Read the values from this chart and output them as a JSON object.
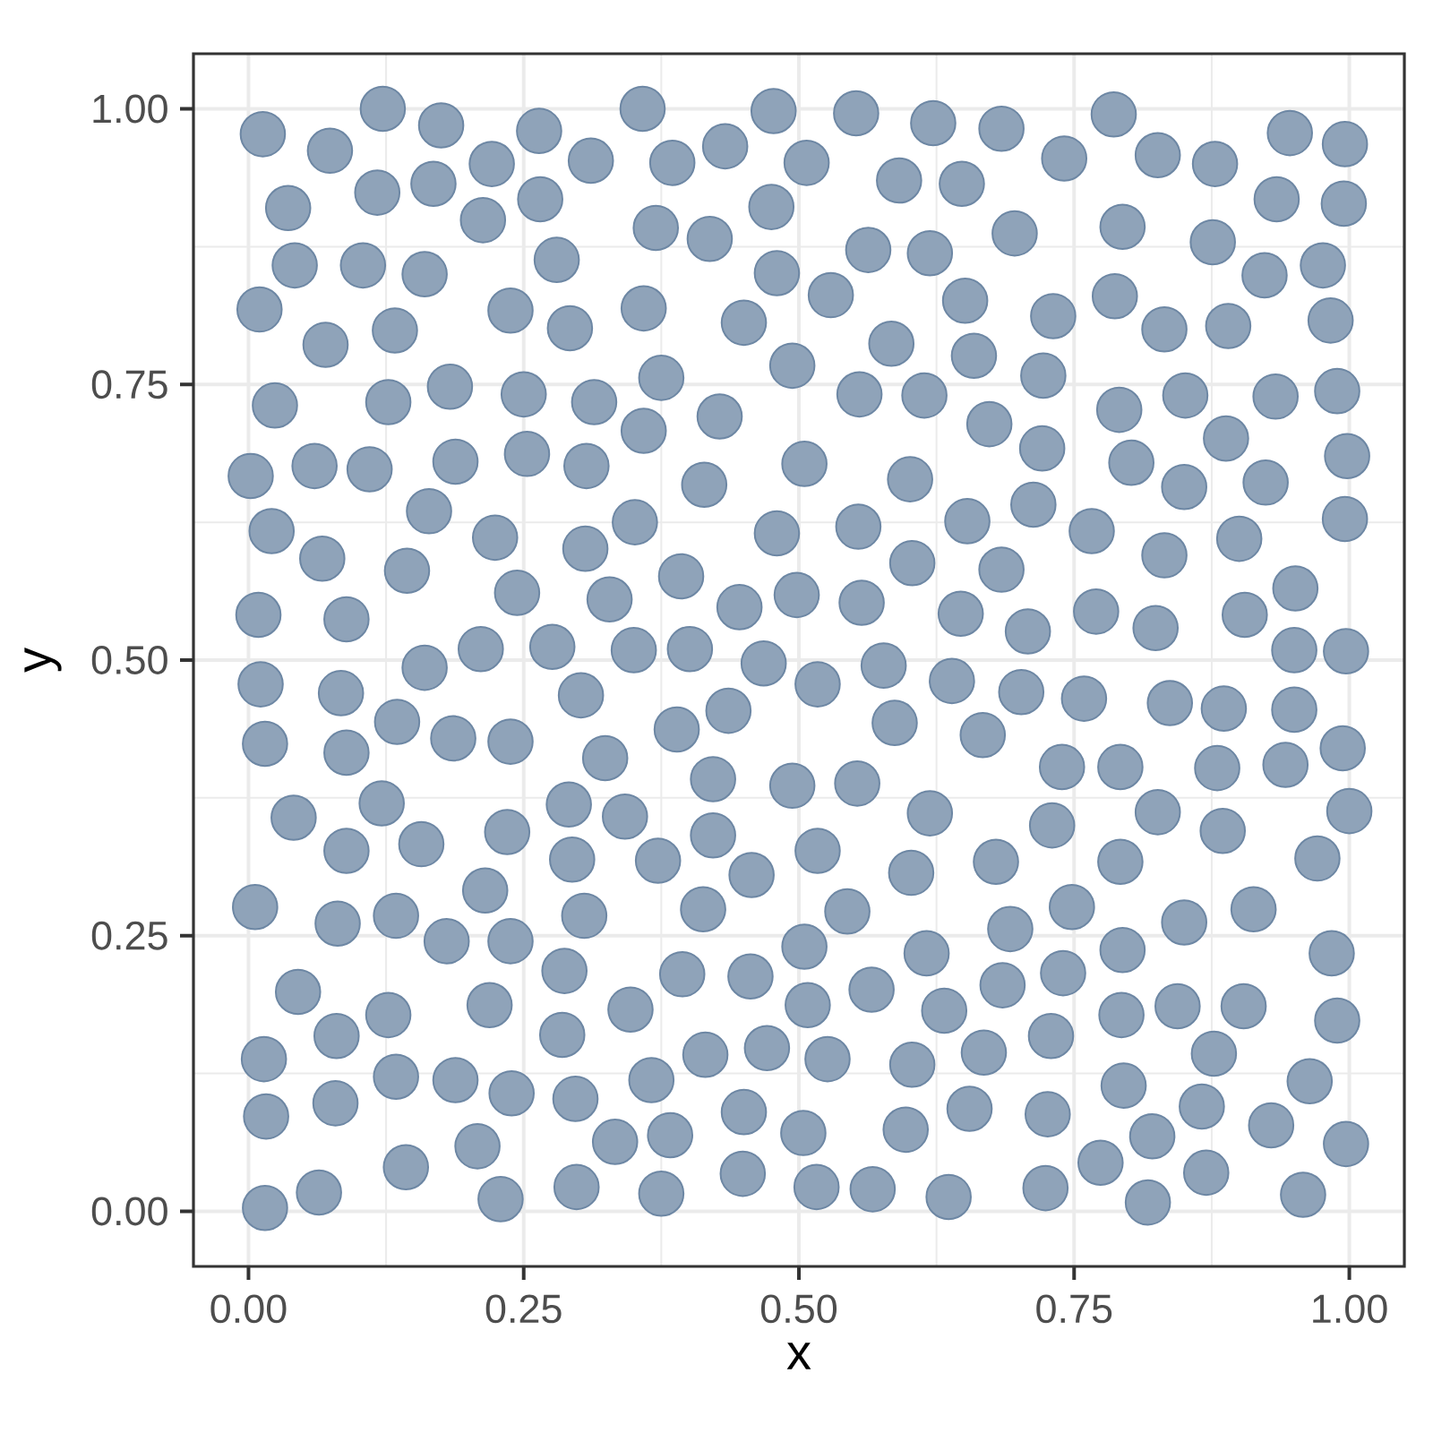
{
  "chart_data": {
    "type": "scatter",
    "xlabel": "x",
    "ylabel": "y",
    "color": "#8fa3b9",
    "marker": "circle",
    "grid": true,
    "xlim": [
      -0.05,
      1.05
    ],
    "ylim": [
      -0.05,
      1.05
    ],
    "xticks": [
      {
        "value": 0,
        "label": "0.00"
      },
      {
        "value": 0.25,
        "label": "0.25"
      },
      {
        "value": 0.5,
        "label": "0.50"
      },
      {
        "value": 0.75,
        "label": "0.75"
      },
      {
        "value": 1,
        "label": "1.00"
      }
    ],
    "yticks": [
      {
        "value": 0,
        "label": "0.00"
      },
      {
        "value": 0.25,
        "label": "0.25"
      },
      {
        "value": 0.5,
        "label": "0.50"
      },
      {
        "value": 0.75,
        "label": "0.75"
      },
      {
        "value": 1,
        "label": "1.00"
      }
    ],
    "x": [
      0.013,
      0.074,
      0.122,
      0.175,
      0.221,
      0.264,
      0.311,
      0.036,
      0.117,
      0.168,
      0.213,
      0.265,
      0.042,
      0.104,
      0.16,
      0.28,
      0.01,
      0.07,
      0.133,
      0.238,
      0.292,
      0.024,
      0.127,
      0.183,
      0.25,
      0.314,
      0.002,
      0.06,
      0.11,
      0.188,
      0.253,
      0.307,
      0.021,
      0.067,
      0.164,
      0.224,
      0.306,
      0.244,
      0.144,
      0.009,
      0.089,
      0.211,
      0.276,
      0.358,
      0.477,
      0.552,
      0.622,
      0.385,
      0.433,
      0.507,
      0.591,
      0.648,
      0.37,
      0.419,
      0.475,
      0.563,
      0.619,
      0.48,
      0.529,
      0.651,
      0.359,
      0.45,
      0.584,
      0.659,
      0.494,
      0.375,
      0.555,
      0.614,
      0.359,
      0.428,
      0.673,
      0.414,
      0.505,
      0.601,
      0.351,
      0.48,
      0.554,
      0.653,
      0.393,
      0.603,
      0.328,
      0.446,
      0.498,
      0.557,
      0.647,
      0.35,
      0.401,
      0.684,
      0.786,
      0.741,
      0.826,
      0.878,
      0.946,
      0.996,
      0.934,
      0.995,
      0.696,
      0.794,
      0.876,
      0.923,
      0.976,
      0.731,
      0.787,
      0.832,
      0.89,
      0.983,
      0.722,
      0.791,
      0.851,
      0.933,
      0.989,
      0.721,
      0.802,
      0.85,
      0.888,
      0.924,
      0.998,
      0.713,
      0.766,
      0.832,
      0.9,
      0.996,
      0.684,
      0.708,
      0.77,
      0.824,
      0.905,
      0.951,
      0.95,
      0.997,
      0.16,
      0.011,
      0.084,
      0.135,
      0.302,
      0.015,
      0.089,
      0.186,
      0.238,
      0.041,
      0.121,
      0.089,
      0.157,
      0.235,
      0.291,
      0.294,
      0.215,
      0.006,
      0.081,
      0.134,
      0.18,
      0.238,
      0.305,
      0.045,
      0.08,
      0.127,
      0.219,
      0.287,
      0.285,
      0.014,
      0.079,
      0.134,
      0.188,
      0.239,
      0.297,
      0.016,
      0.208,
      0.143,
      0.015,
      0.064,
      0.229,
      0.298,
      0.468,
      0.517,
      0.577,
      0.639,
      0.436,
      0.389,
      0.587,
      0.667,
      0.324,
      0.422,
      0.494,
      0.553,
      0.342,
      0.422,
      0.619,
      0.372,
      0.457,
      0.517,
      0.602,
      0.679,
      0.413,
      0.544,
      0.505,
      0.616,
      0.394,
      0.456,
      0.347,
      0.508,
      0.566,
      0.632,
      0.415,
      0.471,
      0.526,
      0.603,
      0.668,
      0.366,
      0.333,
      0.383,
      0.45,
      0.504,
      0.597,
      0.655,
      0.375,
      0.449,
      0.516,
      0.567,
      0.636,
      0.702,
      0.759,
      0.837,
      0.886,
      0.95,
      0.739,
      0.792,
      0.88,
      0.942,
      0.994,
      0.73,
      0.826,
      0.885,
      1.0,
      0.792,
      0.971,
      0.748,
      0.85,
      0.913,
      0.692,
      0.794,
      0.984,
      0.685,
      0.74,
      0.793,
      0.844,
      0.904,
      0.989,
      0.729,
      0.877,
      0.795,
      0.866,
      0.964,
      0.726,
      0.821,
      0.929,
      0.997,
      0.774,
      0.87,
      0.724,
      0.817,
      0.958
    ],
    "values": [
      0.977,
      0.962,
      1.0,
      0.985,
      0.95,
      0.98,
      0.953,
      0.91,
      0.924,
      0.932,
      0.899,
      0.918,
      0.858,
      0.858,
      0.85,
      0.863,
      0.818,
      0.786,
      0.799,
      0.817,
      0.801,
      0.731,
      0.734,
      0.748,
      0.741,
      0.734,
      0.667,
      0.676,
      0.673,
      0.68,
      0.687,
      0.676,
      0.617,
      0.592,
      0.635,
      0.611,
      0.601,
      0.561,
      0.581,
      0.541,
      0.537,
      0.51,
      0.512,
      1.0,
      0.998,
      0.996,
      0.987,
      0.951,
      0.966,
      0.951,
      0.935,
      0.932,
      0.892,
      0.882,
      0.911,
      0.872,
      0.869,
      0.851,
      0.831,
      0.826,
      0.819,
      0.806,
      0.787,
      0.776,
      0.767,
      0.756,
      0.741,
      0.74,
      0.708,
      0.721,
      0.714,
      0.659,
      0.678,
      0.664,
      0.625,
      0.615,
      0.621,
      0.626,
      0.576,
      0.588,
      0.555,
      0.548,
      0.559,
      0.552,
      0.542,
      0.509,
      0.51,
      0.982,
      0.995,
      0.955,
      0.958,
      0.95,
      0.978,
      0.968,
      0.918,
      0.914,
      0.887,
      0.893,
      0.879,
      0.849,
      0.858,
      0.812,
      0.83,
      0.8,
      0.803,
      0.808,
      0.758,
      0.727,
      0.74,
      0.739,
      0.744,
      0.692,
      0.679,
      0.657,
      0.701,
      0.661,
      0.685,
      0.641,
      0.617,
      0.595,
      0.61,
      0.628,
      0.582,
      0.526,
      0.544,
      0.529,
      0.541,
      0.565,
      0.509,
      0.508,
      0.493,
      0.478,
      0.47,
      0.444,
      0.468,
      0.424,
      0.416,
      0.429,
      0.426,
      0.357,
      0.37,
      0.327,
      0.333,
      0.344,
      0.369,
      0.319,
      0.291,
      0.276,
      0.261,
      0.268,
      0.245,
      0.245,
      0.268,
      0.199,
      0.159,
      0.178,
      0.187,
      0.218,
      0.16,
      0.138,
      0.098,
      0.122,
      0.119,
      0.107,
      0.102,
      0.086,
      0.059,
      0.04,
      0.003,
      0.017,
      0.011,
      0.022,
      0.497,
      0.478,
      0.495,
      0.481,
      0.454,
      0.437,
      0.443,
      0.432,
      0.411,
      0.392,
      0.386,
      0.388,
      0.358,
      0.341,
      0.361,
      0.318,
      0.305,
      0.327,
      0.307,
      0.317,
      0.274,
      0.272,
      0.24,
      0.234,
      0.215,
      0.213,
      0.183,
      0.187,
      0.201,
      0.182,
      0.142,
      0.148,
      0.138,
      0.133,
      0.144,
      0.119,
      0.063,
      0.069,
      0.09,
      0.071,
      0.074,
      0.093,
      0.016,
      0.034,
      0.022,
      0.02,
      0.013,
      0.471,
      0.465,
      0.461,
      0.456,
      0.455,
      0.403,
      0.403,
      0.402,
      0.405,
      0.42,
      0.35,
      0.362,
      0.345,
      0.363,
      0.317,
      0.32,
      0.276,
      0.262,
      0.274,
      0.256,
      0.237,
      0.234,
      0.205,
      0.216,
      0.178,
      0.186,
      0.186,
      0.173,
      0.159,
      0.143,
      0.114,
      0.095,
      0.118,
      0.088,
      0.068,
      0.078,
      0.061,
      0.044,
      0.035,
      0.021,
      0.008,
      0.015
    ]
  }
}
